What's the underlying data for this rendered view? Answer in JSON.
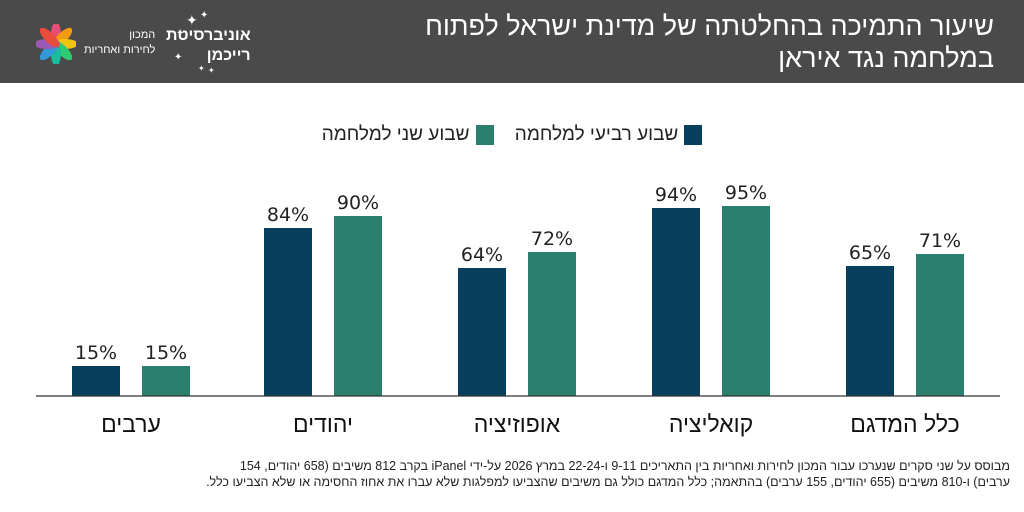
{
  "header": {
    "title_line1": "שיעור התמיכה בהחלטתה של מדינת ישראל לפתוח",
    "title_line2": "במלחמה נגד איראן",
    "logo": {
      "university_line1": "אוניברסיטת",
      "university_line2": "רייכמן",
      "institute_line1": "המכון",
      "institute_line2": "לחירות ואחריות"
    }
  },
  "colors": {
    "header_bg": "#4a4a4a",
    "series_week4": "#073f5c",
    "series_week2": "#2a7f6f"
  },
  "chart_data": {
    "type": "bar",
    "categories": [
      "כלל המדגם",
      "קואליציה",
      "אופוזיציה",
      "יהודים",
      "ערבים"
    ],
    "series": [
      {
        "name": "שבוע רביעי למלחמה",
        "values": [
          65,
          94,
          64,
          84,
          15
        ]
      },
      {
        "name": "שבוע שני למלחמה",
        "values": [
          71,
          95,
          72,
          90,
          15
        ]
      }
    ],
    "data_labels": [
      [
        "65%",
        "94%",
        "64%",
        "84%",
        "15%"
      ],
      [
        "71%",
        "95%",
        "72%",
        "90%",
        "15%"
      ]
    ],
    "ylim": [
      0,
      100
    ],
    "grid": false,
    "legend_position": "top-center"
  },
  "footnote": {
    "line1": "מבוסס על שני סקרים שנערכו עבור המכון לחירות ואחריות בין התאריכים 9-11 ו-22-24 במרץ 2026 על-ידי iPanel בקרב 812 משיבים (658 יהודים, 154",
    "line2": "ערבים) ו-810 משיבים (655 יהודים, 155 ערבים) בהתאמה; כלל המדגם כולל גם משיבים שהצביעו למפלגות שלא עברו את אחוז החסימה או שלא הצביעו כלל."
  }
}
